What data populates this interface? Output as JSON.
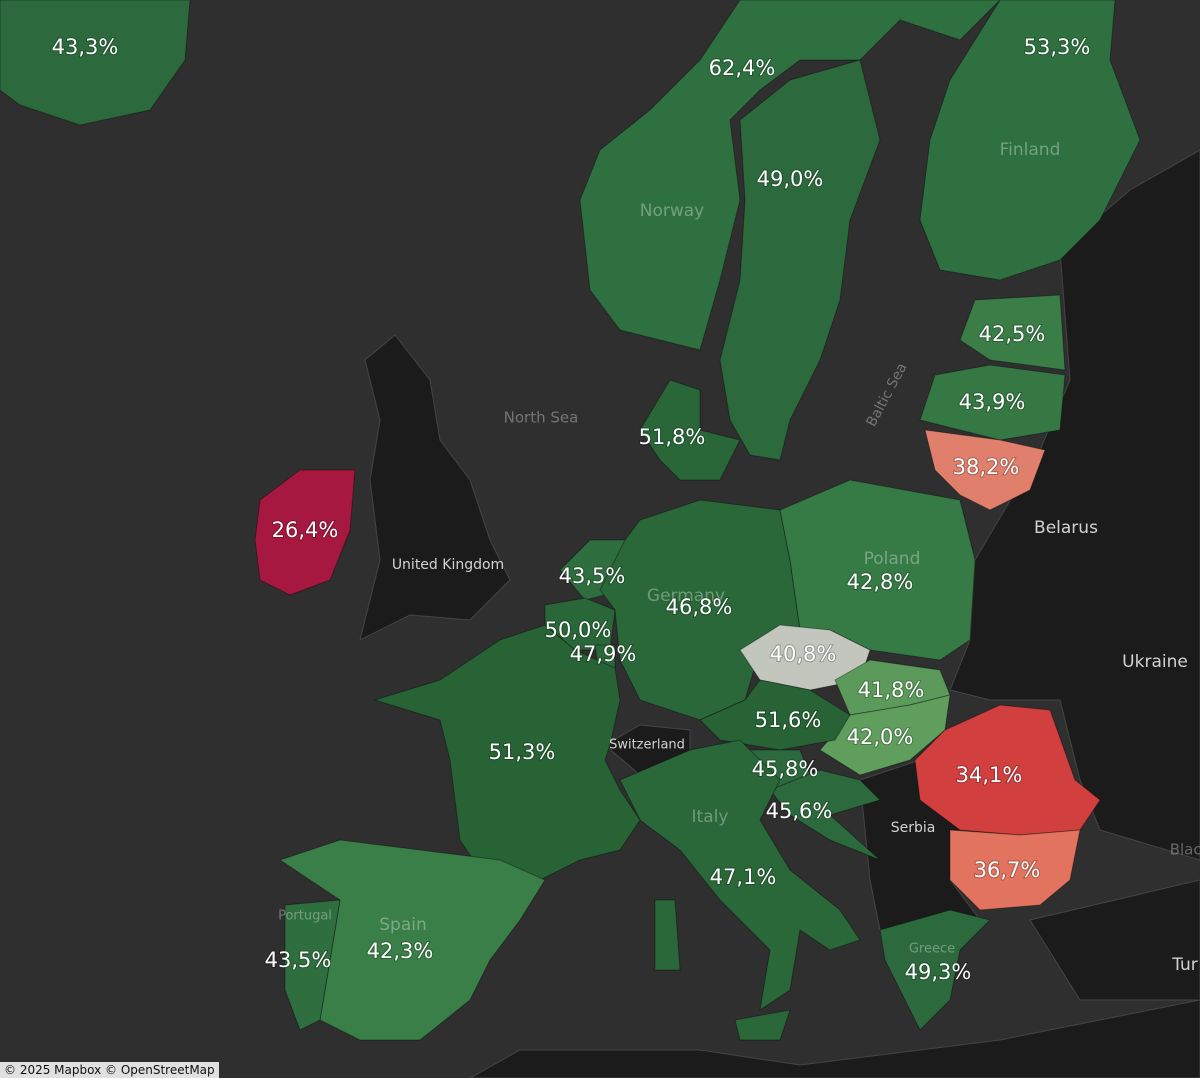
{
  "map": {
    "regions": [
      {
        "label": "43,3%",
        "color": "#2c6a3d"
      },
      {
        "label": "62,4%",
        "color": "#2f7040"
      },
      {
        "label": "49,0%",
        "color": "#2c6a3d"
      },
      {
        "label": "53,3%",
        "color": "#2f7040"
      },
      {
        "label": "42,5%",
        "color": "#3a7d47"
      },
      {
        "label": "43,9%",
        "color": "#367844"
      },
      {
        "label": "38,2%",
        "color": "#df7f6c"
      },
      {
        "label": "51,8%",
        "color": "#296638"
      },
      {
        "label": "26,4%",
        "color": "#a6183f"
      },
      {
        "label": "43,5%",
        "color": "#2f6e3f"
      },
      {
        "label": "50,0%",
        "color": "#296638"
      },
      {
        "label": "47,9%",
        "color": "#2a6739"
      },
      {
        "label": "46,8%",
        "color": "#2a6739"
      },
      {
        "label": "42,8%",
        "color": "#367a45"
      },
      {
        "label": "40,8%",
        "color": "#c3c6bc"
      },
      {
        "label": "41,8%",
        "color": "#5b9a5a"
      },
      {
        "label": "42,0%",
        "color": "#5f9e5d"
      },
      {
        "label": "51,6%",
        "color": "#276335"
      },
      {
        "label": "45,8%",
        "color": "#2c6a3d"
      },
      {
        "label": "45,6%",
        "color": "#2c6a3d"
      },
      {
        "label": "34,1%",
        "color": "#d13f3f"
      },
      {
        "label": "36,7%",
        "color": "#e2735e"
      },
      {
        "label": "47,1%",
        "color": "#2a6739"
      },
      {
        "label": "51,3%",
        "color": "#276335"
      },
      {
        "label": "42,3%",
        "color": "#3b7f48"
      },
      {
        "label": "43,5%",
        "color": "#2f6e3f"
      },
      {
        "label": "49,3%",
        "color": "#2c6a3d"
      }
    ],
    "place_labels": [
      "Finland",
      "Norway",
      "North Sea",
      "Baltic Sea",
      "Belarus",
      "Ukraine",
      "United Kingdom",
      "Poland",
      "Germany",
      "Switzerland",
      "Italy",
      "Serbia",
      "Spain",
      "Portugal",
      "Greece",
      "Black",
      "Tur"
    ],
    "attribution": "© 2025 Mapbox © OpenStreetMap"
  }
}
